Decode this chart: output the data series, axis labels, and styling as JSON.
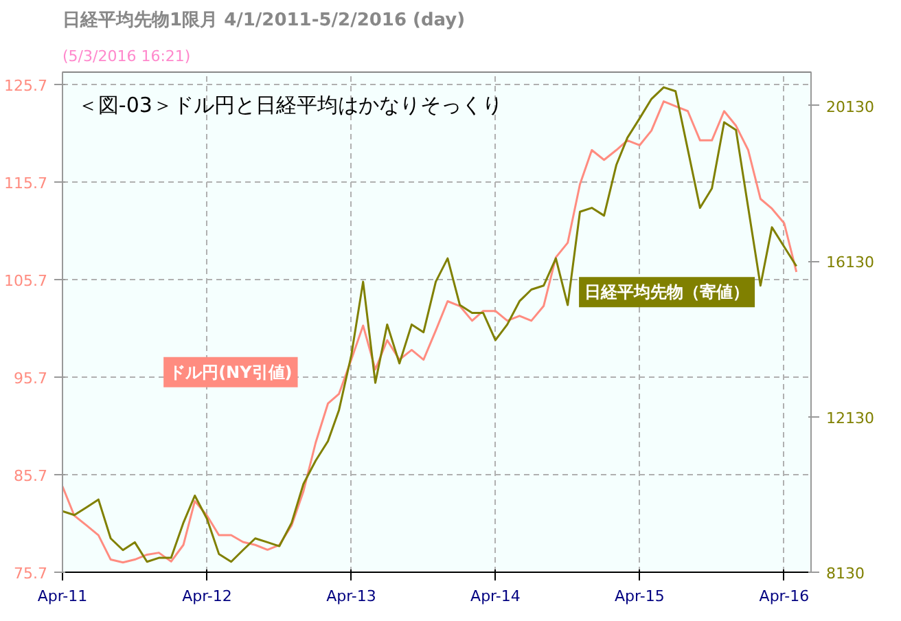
{
  "chart_data": {
    "type": "line",
    "title": "日経平均先物1限月  4/1/2011-5/2/2016 (day)",
    "subtitle": "(5/3/2016 16:21)",
    "annotations": [
      "＜図-03＞ドル円と日経平均はかなりそっくり"
    ],
    "x": [
      "2011-04-01",
      "2011-05-01",
      "2011-06-01",
      "2011-07-01",
      "2011-08-01",
      "2011-09-01",
      "2011-10-01",
      "2011-11-01",
      "2011-12-01",
      "2012-01-01",
      "2012-02-01",
      "2012-03-01",
      "2012-04-01",
      "2012-05-01",
      "2012-06-01",
      "2012-07-01",
      "2012-08-01",
      "2012-09-01",
      "2012-10-01",
      "2012-11-01",
      "2012-12-01",
      "2013-01-01",
      "2013-02-01",
      "2013-03-01",
      "2013-04-01",
      "2013-05-01",
      "2013-06-01",
      "2013-07-01",
      "2013-08-01",
      "2013-09-01",
      "2013-10-01",
      "2013-11-01",
      "2013-12-01",
      "2014-01-01",
      "2014-02-01",
      "2014-03-01",
      "2014-04-01",
      "2014-05-01",
      "2014-06-01",
      "2014-07-01",
      "2014-08-01",
      "2014-09-01",
      "2014-10-01",
      "2014-11-01",
      "2014-12-01",
      "2015-01-01",
      "2015-02-01",
      "2015-03-01",
      "2015-04-01",
      "2015-05-01",
      "2015-06-01",
      "2015-07-01",
      "2015-08-01",
      "2015-09-01",
      "2015-10-01",
      "2015-11-01",
      "2015-12-01",
      "2016-01-01",
      "2016-02-01",
      "2016-03-01",
      "2016-04-01",
      "2016-05-02"
    ],
    "series": [
      {
        "name": "ドル円(NY引値)",
        "color": "#ff8c80",
        "values": [
          84.5,
          81.5,
          80.5,
          79.5,
          77,
          76.7,
          77,
          77.5,
          77.7,
          76.8,
          78.5,
          83,
          81.5,
          79.5,
          79.5,
          78.8,
          78.5,
          78,
          78.5,
          80.5,
          84,
          89,
          93,
          94,
          97.5,
          101,
          96.5,
          99.5,
          97.5,
          98.5,
          97.5,
          100.5,
          103.5,
          103,
          101.5,
          102.5,
          102.5,
          101.5,
          102,
          101.5,
          103,
          108,
          109.5,
          115.5,
          119,
          118,
          119,
          120,
          119.5,
          121,
          124,
          123.5,
          123,
          120,
          120,
          123,
          121.5,
          119,
          114,
          113,
          111.5,
          106.5
        ]
      },
      {
        "name": "日経平均先物（寄値）",
        "color": "#808000",
        "axis": "y2",
        "values": [
          9700,
          9600,
          9800,
          10000,
          9000,
          8700,
          8900,
          8400,
          8500,
          8500,
          9400,
          10100,
          9500,
          8600,
          8400,
          8700,
          9000,
          8900,
          8800,
          9400,
          10400,
          11000,
          11500,
          12300,
          13700,
          15600,
          13000,
          14500,
          13500,
          14500,
          14300,
          15600,
          16200,
          15000,
          14800,
          14800,
          14100,
          14500,
          15100,
          15400,
          15500,
          16200,
          15000,
          17400,
          17500,
          17300,
          18600,
          19300,
          19800,
          20300,
          20600,
          20500,
          19000,
          17500,
          18000,
          19700,
          19500,
          17500,
          15500,
          17000,
          16500,
          16000
        ]
      }
    ],
    "xlim": [
      "2011-04-01",
      "2016-06-08"
    ],
    "xticks": [
      {
        "value": "2011-04-01",
        "label": "Apr-11"
      },
      {
        "value": "2012-04-01",
        "label": "Apr-12"
      },
      {
        "value": "2013-04-01",
        "label": "Apr-13"
      },
      {
        "value": "2014-04-01",
        "label": "Apr-14"
      },
      {
        "value": "2015-04-01",
        "label": "Apr-15"
      },
      {
        "value": "2016-04-01",
        "label": "Apr-16"
      }
    ],
    "ylim": [
      75.7,
      127.0
    ],
    "yticks": [
      75.7,
      85.7,
      95.7,
      105.7,
      115.7,
      125.7
    ],
    "y2lim": [
      8130,
      20990
    ],
    "y2ticks": [
      8130,
      12130,
      16130,
      20130
    ],
    "grid": true
  }
}
